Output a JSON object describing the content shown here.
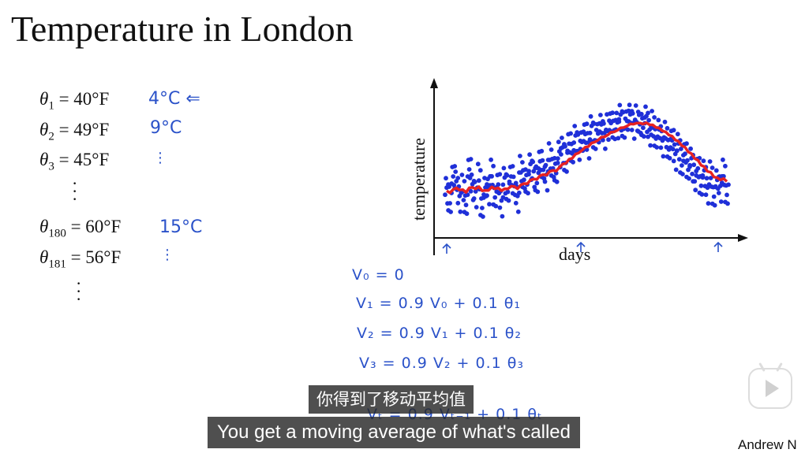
{
  "slide": {
    "title": "Temperature in London",
    "equations": [
      {
        "sym": "θ",
        "sub": "1",
        "rhs": "= 40°F",
        "note": "4°C  ⇐"
      },
      {
        "sym": "θ",
        "sub": "2",
        "rhs": "= 49°F",
        "note": "9°C"
      },
      {
        "sym": "θ",
        "sub": "3",
        "rhs": "= 45°F",
        "note": "⋮"
      },
      {
        "sym": "θ",
        "sub": "180",
        "rhs": "= 60°F",
        "note": "15°C"
      },
      {
        "sym": "θ",
        "sub": "181",
        "rhs": "= 56°F",
        "note": "⋮"
      }
    ],
    "vdots": "⋮",
    "v_equations": [
      "V₀ = 0",
      "V₁ = 0.9 V₀    + 0.1 θ₁",
      "V₂ = 0.9 V₁    + 0.1 θ₂",
      "V₃ = 0.9 V₂    + 0.1 θ₃",
      "Vₜ = 0.9 Vₜ₋₁  + 0.1 θₜ"
    ]
  },
  "chart_data": {
    "type": "scatter",
    "xlabel": "days",
    "ylabel": "temperature",
    "series": [
      {
        "kind": "points",
        "color": "#1f2fd8",
        "values": [
          0.28,
          0.2,
          0.4,
          0.35,
          0.22,
          0.3,
          0.18,
          0.45,
          0.32,
          0.25,
          0.38,
          0.15,
          0.3,
          0.28,
          0.42,
          0.24,
          0.33,
          0.19,
          0.36,
          0.29,
          0.4,
          0.31,
          0.22,
          0.45,
          0.38,
          0.33,
          0.48,
          0.41,
          0.36,
          0.52,
          0.44,
          0.39,
          0.55,
          0.47,
          0.42,
          0.58,
          0.6,
          0.52,
          0.66,
          0.57,
          0.7,
          0.62,
          0.68,
          0.73,
          0.65,
          0.77,
          0.7,
          0.74,
          0.8,
          0.72,
          0.78,
          0.83,
          0.76,
          0.81,
          0.86,
          0.79,
          0.84,
          0.88,
          0.8,
          0.85,
          0.82,
          0.78,
          0.86,
          0.74,
          0.8,
          0.7,
          0.76,
          0.66,
          0.72,
          0.62,
          0.68,
          0.56,
          0.63,
          0.5,
          0.58,
          0.44,
          0.52,
          0.38,
          0.47,
          0.32,
          0.43,
          0.28,
          0.4,
          0.24,
          0.36,
          0.3,
          0.42,
          0.26
        ]
      },
      {
        "kind": "moving-average",
        "color": "#e62222"
      }
    ]
  },
  "subtitles": {
    "chinese": "你得到了移动平均值",
    "english": "You get a moving average of what's called"
  },
  "watermark": {
    "author": "Andrew N"
  },
  "icons": {
    "play": "play-button-icon"
  }
}
